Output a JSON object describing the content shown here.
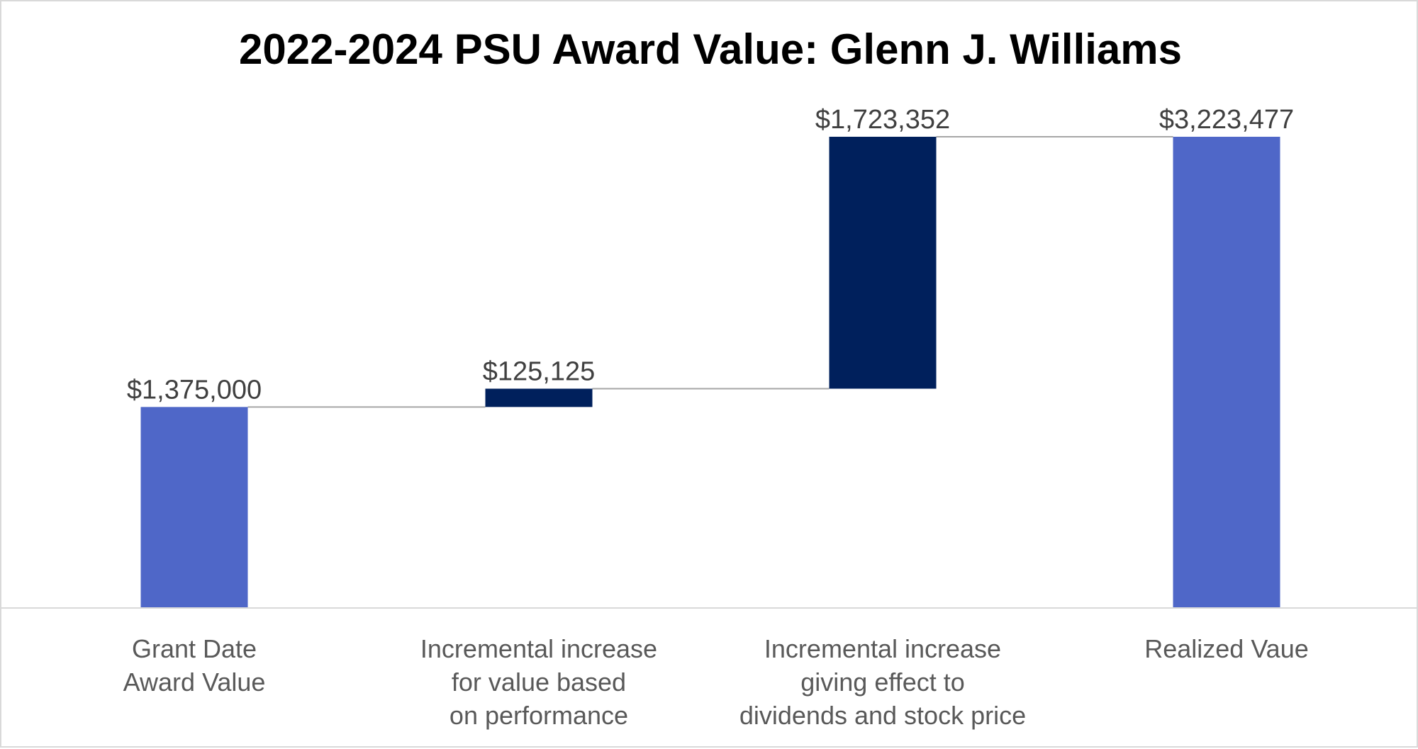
{
  "chart_data": {
    "type": "bar",
    "subtype": "waterfall",
    "title": "2022-2024 PSU Award Value: Glenn J. Williams",
    "xlabel": "",
    "ylabel": "",
    "ylim": [
      0,
      3500000
    ],
    "grid": false,
    "legend": "none",
    "categories": [
      [
        "Grant Date",
        "Award Value"
      ],
      [
        "Incremental increase",
        "for value based",
        "on performance"
      ],
      [
        "Incremental increase",
        "giving effect to",
        "dividends and stock price"
      ],
      [
        "Realized Vaue"
      ]
    ],
    "bars": [
      {
        "kind": "total",
        "value": 1375000,
        "label": "$1,375,000",
        "color": "#4f67c8"
      },
      {
        "kind": "increase",
        "value": 125125,
        "label": "$125,125",
        "color": "#00205c"
      },
      {
        "kind": "increase",
        "value": 1723352,
        "label": "$1,723,352",
        "color": "#00205c"
      },
      {
        "kind": "total",
        "value": 3223477,
        "label": "$3,223,477",
        "color": "#4f67c8"
      }
    ],
    "colors": {
      "total": "#4f67c8",
      "increase": "#00205c",
      "connector": "#a6a6a6",
      "axis": "#d9d9d9"
    }
  }
}
